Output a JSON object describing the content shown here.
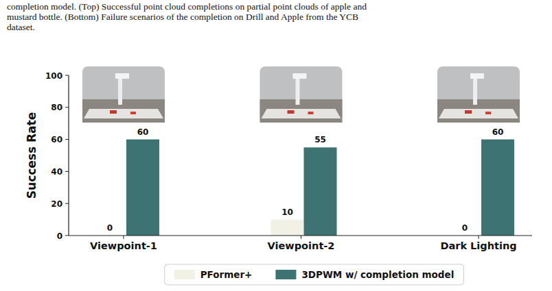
{
  "caption": {
    "lines": [
      "completion model. (Top) Successful point cloud completions on partial point clouds of apple and",
      "mustard bottle. (Bottom) Failure scenarios of the completion on Drill and Apple from the YCB",
      "dataset."
    ]
  },
  "chart_data": {
    "type": "bar",
    "y_label": "Success Rate",
    "categories": [
      "Viewpoint-1",
      "Viewpoint-2",
      "Dark Lighting"
    ],
    "series": [
      {
        "name": "PFormer+",
        "color": "#f1f1e6",
        "values": [
          0,
          10,
          0
        ]
      },
      {
        "name": "3DPWM w/ completion model",
        "color": "#3e7373",
        "values": [
          60,
          55,
          60
        ]
      }
    ],
    "ylim": [
      0,
      100
    ],
    "yticks": [
      0,
      20,
      40,
      60,
      80,
      100
    ],
    "grid": false,
    "legend": "bottom",
    "data_labels": true
  }
}
